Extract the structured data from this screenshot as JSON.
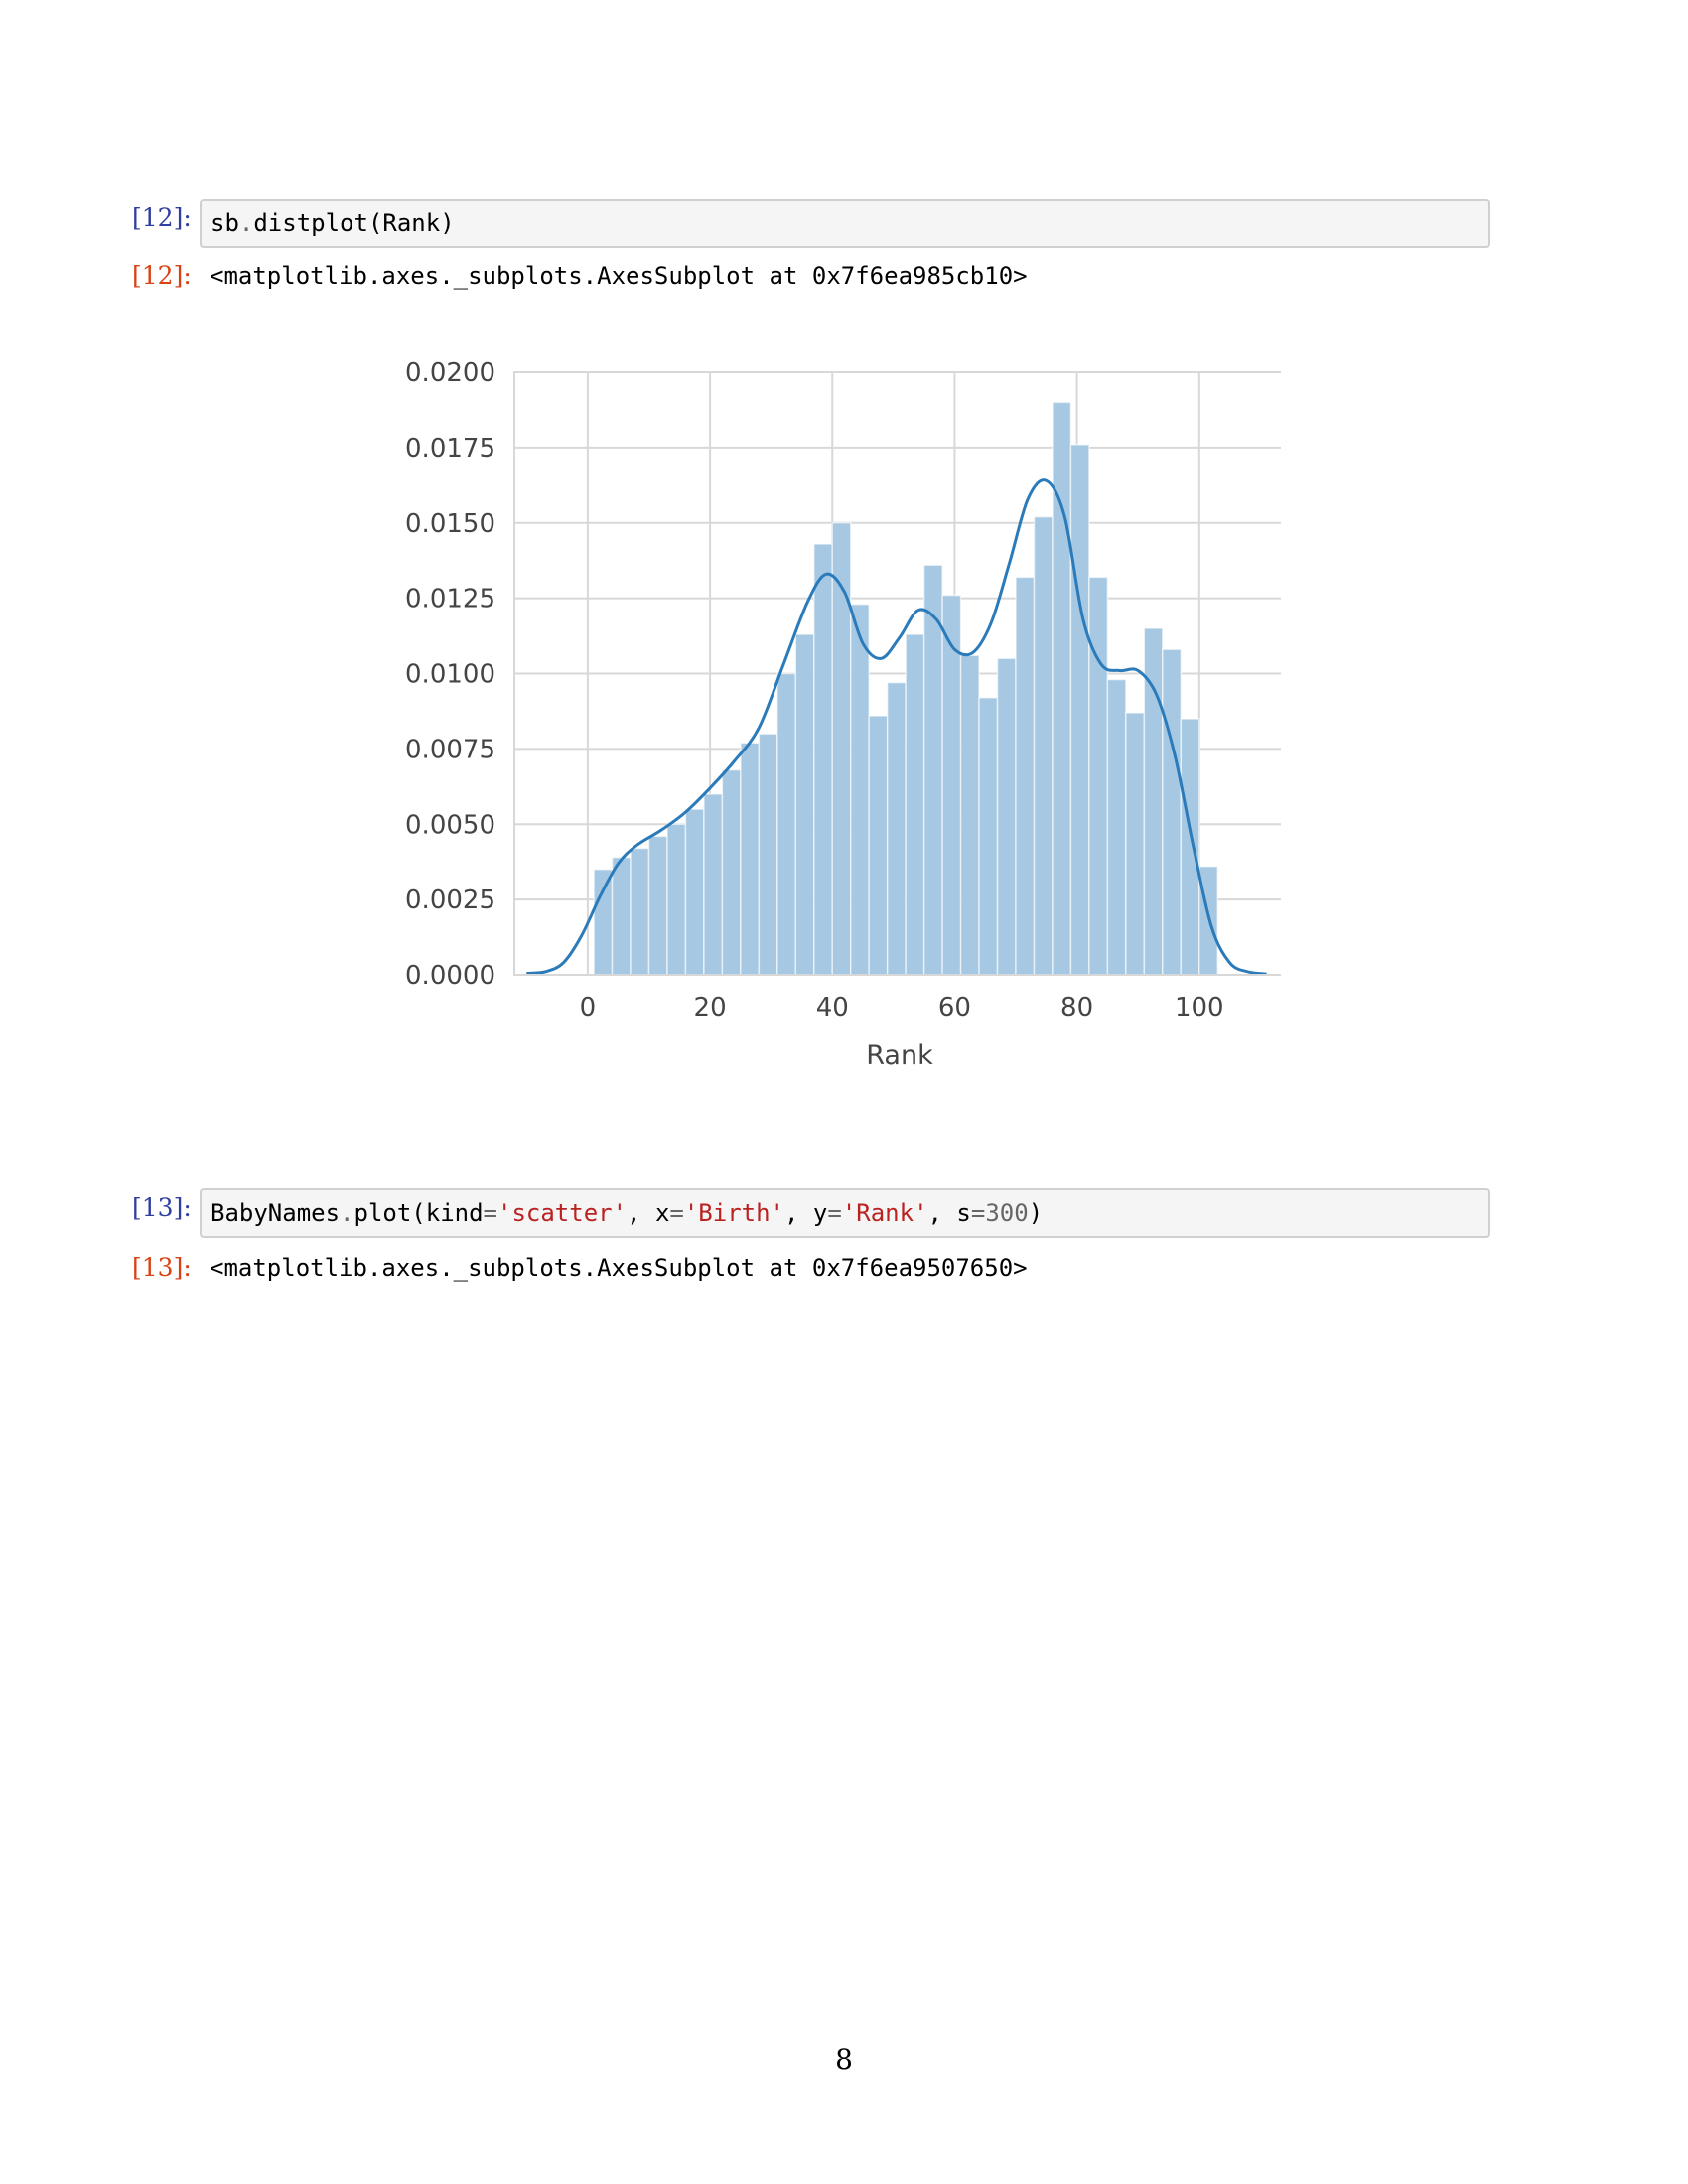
{
  "cells": [
    {
      "input_prompt": "[12]:",
      "code_tokens": [
        {
          "text": "sb",
          "cls": ""
        },
        {
          "text": ".",
          "cls": "tok-op"
        },
        {
          "text": "distplot(Rank)",
          "cls": ""
        }
      ],
      "output_prompt": "[12]:",
      "output_text": "<matplotlib.axes._subplots.AxesSubplot at 0x7f6ea985cb10>"
    },
    {
      "input_prompt": "[13]:",
      "code_tokens": [
        {
          "text": "BabyNames",
          "cls": ""
        },
        {
          "text": ".",
          "cls": "tok-op"
        },
        {
          "text": "plot(kind",
          "cls": ""
        },
        {
          "text": "=",
          "cls": "tok-op"
        },
        {
          "text": "'scatter'",
          "cls": "tok-str"
        },
        {
          "text": ", x",
          "cls": ""
        },
        {
          "text": "=",
          "cls": "tok-op"
        },
        {
          "text": "'Birth'",
          "cls": "tok-str"
        },
        {
          "text": ", y",
          "cls": ""
        },
        {
          "text": "=",
          "cls": "tok-op"
        },
        {
          "text": "'Rank'",
          "cls": "tok-str"
        },
        {
          "text": ", s",
          "cls": ""
        },
        {
          "text": "=",
          "cls": "tok-op"
        },
        {
          "text": "300",
          "cls": "tok-num"
        },
        {
          "text": ")",
          "cls": ""
        }
      ],
      "output_prompt": "[13]:",
      "output_text": "<matplotlib.axes._subplots.AxesSubplot at 0x7f6ea9507650>"
    }
  ],
  "page_number": "8",
  "chart_data": {
    "type": "bar",
    "title": "",
    "xlabel": "Rank",
    "ylabel": "",
    "xlim": [
      -12,
      114
    ],
    "ylim": [
      0,
      0.02
    ],
    "xticks": [
      "0",
      "20",
      "40",
      "60",
      "80",
      "100"
    ],
    "xtick_values": [
      0,
      20,
      40,
      60,
      80,
      100
    ],
    "yticks": [
      "0.0000",
      "0.0025",
      "0.0050",
      "0.0075",
      "0.0100",
      "0.0125",
      "0.0150",
      "0.0175",
      "0.0200"
    ],
    "ytick_values": [
      0,
      0.0025,
      0.005,
      0.0075,
      0.01,
      0.0125,
      0.015,
      0.0175,
      0.02
    ],
    "grid": true,
    "bin_edges": [
      1,
      4,
      7,
      10,
      13,
      16,
      19,
      22,
      25,
      28,
      31,
      34,
      37,
      40,
      43,
      46,
      49,
      52,
      55,
      58,
      61,
      64,
      67,
      70,
      73,
      76,
      79,
      82,
      85,
      88,
      91,
      94,
      97,
      100,
      103
    ],
    "values": [
      0.0035,
      0.0039,
      0.0042,
      0.0046,
      0.005,
      0.0055,
      0.006,
      0.0068,
      0.0077,
      0.008,
      0.01,
      0.0113,
      0.0143,
      0.015,
      0.0123,
      0.0086,
      0.0097,
      0.0113,
      0.0136,
      0.0126,
      0.0106,
      0.0092,
      0.0105,
      0.0132,
      0.0152,
      0.019,
      0.0176,
      0.0132,
      0.0098,
      0.0087,
      0.0115,
      0.0108,
      0.0085,
      0.0036
    ],
    "bar_color": "#a6c8e2",
    "kde": {
      "x": [
        -10,
        -7,
        -4,
        -1,
        2,
        5,
        8,
        12,
        16,
        20,
        24,
        28,
        32,
        36,
        39,
        42,
        45,
        48,
        51,
        54,
        57,
        60,
        63,
        66,
        69,
        72,
        75,
        78,
        81,
        84,
        87,
        90,
        93,
        96,
        99,
        102,
        105,
        108,
        111
      ],
      "y": [
        5e-05,
        0.0001,
        0.0004,
        0.0013,
        0.0026,
        0.0037,
        0.0043,
        0.0048,
        0.0054,
        0.0062,
        0.0071,
        0.0082,
        0.0103,
        0.0124,
        0.0133,
        0.0127,
        0.011,
        0.0105,
        0.0112,
        0.0121,
        0.0118,
        0.0108,
        0.0107,
        0.0117,
        0.0137,
        0.0158,
        0.0164,
        0.0152,
        0.0118,
        0.0103,
        0.0101,
        0.0101,
        0.0093,
        0.0073,
        0.0043,
        0.0016,
        0.0004,
        0.0001,
        3e-05
      ],
      "color": "#2b7bba"
    }
  }
}
